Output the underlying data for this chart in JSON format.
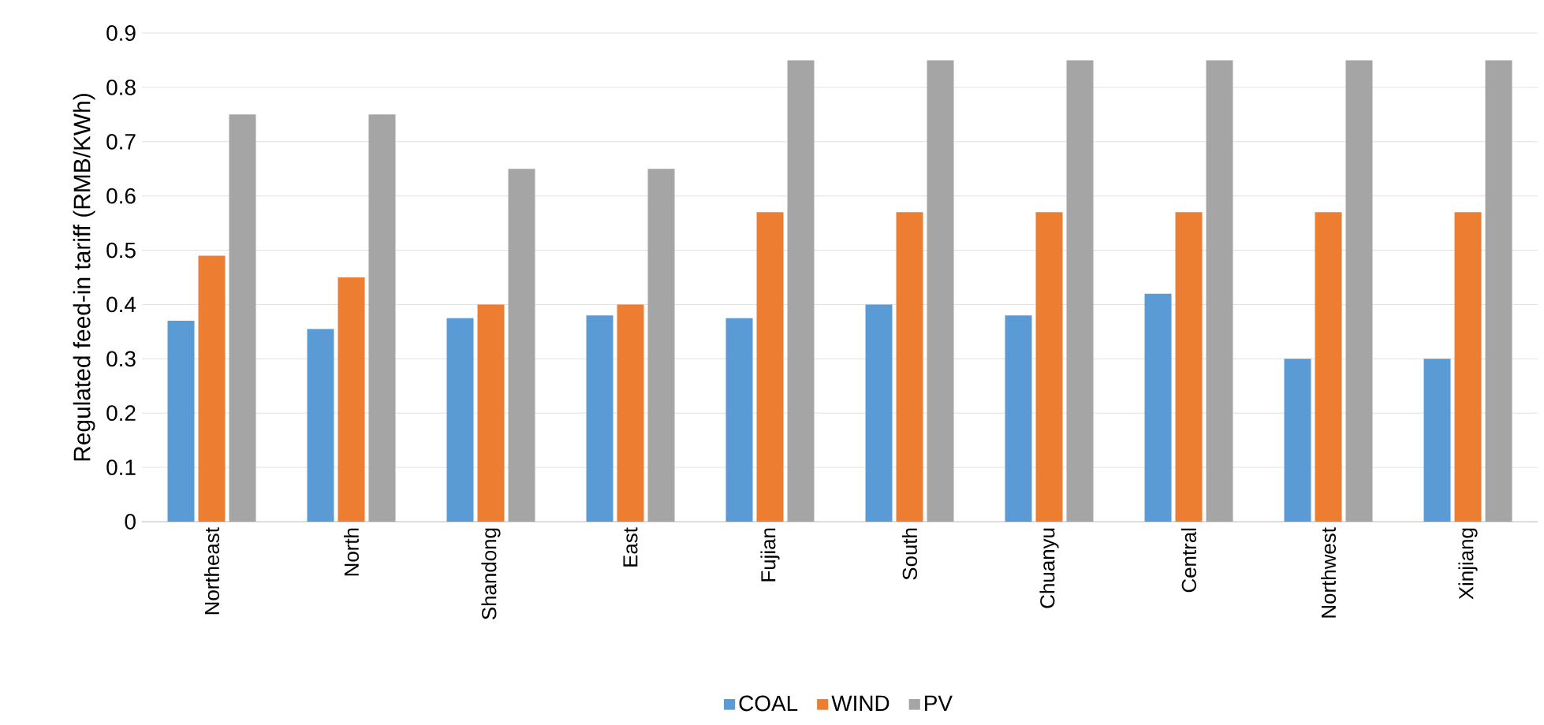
{
  "chart_data": {
    "type": "bar",
    "ylabel": "Regulated feed-in tariff (RMB/KWh)",
    "categories": [
      "Northeast",
      "North",
      "Shandong",
      "East",
      "Fujian",
      "South",
      "Chuanyu",
      "Central",
      "Northwest",
      "Xinjiang"
    ],
    "series": [
      {
        "name": "COAL",
        "color": "#5b9bd5",
        "values": [
          0.37,
          0.355,
          0.375,
          0.38,
          0.375,
          0.4,
          0.38,
          0.42,
          0.3,
          0.3
        ]
      },
      {
        "name": "WIND",
        "color": "#ed7d31",
        "values": [
          0.49,
          0.45,
          0.4,
          0.4,
          0.57,
          0.57,
          0.57,
          0.57,
          0.57,
          0.57
        ]
      },
      {
        "name": "PV",
        "color": "#a5a5a5",
        "values": [
          0.75,
          0.75,
          0.65,
          0.65,
          0.85,
          0.85,
          0.85,
          0.85,
          0.85,
          0.85
        ]
      }
    ],
    "ylim": [
      0,
      0.9
    ],
    "yticks": [
      0,
      0.1,
      0.2,
      0.3,
      0.4,
      0.5,
      0.6,
      0.7,
      0.8,
      0.9
    ],
    "grid": "y",
    "legend": "bottom"
  }
}
